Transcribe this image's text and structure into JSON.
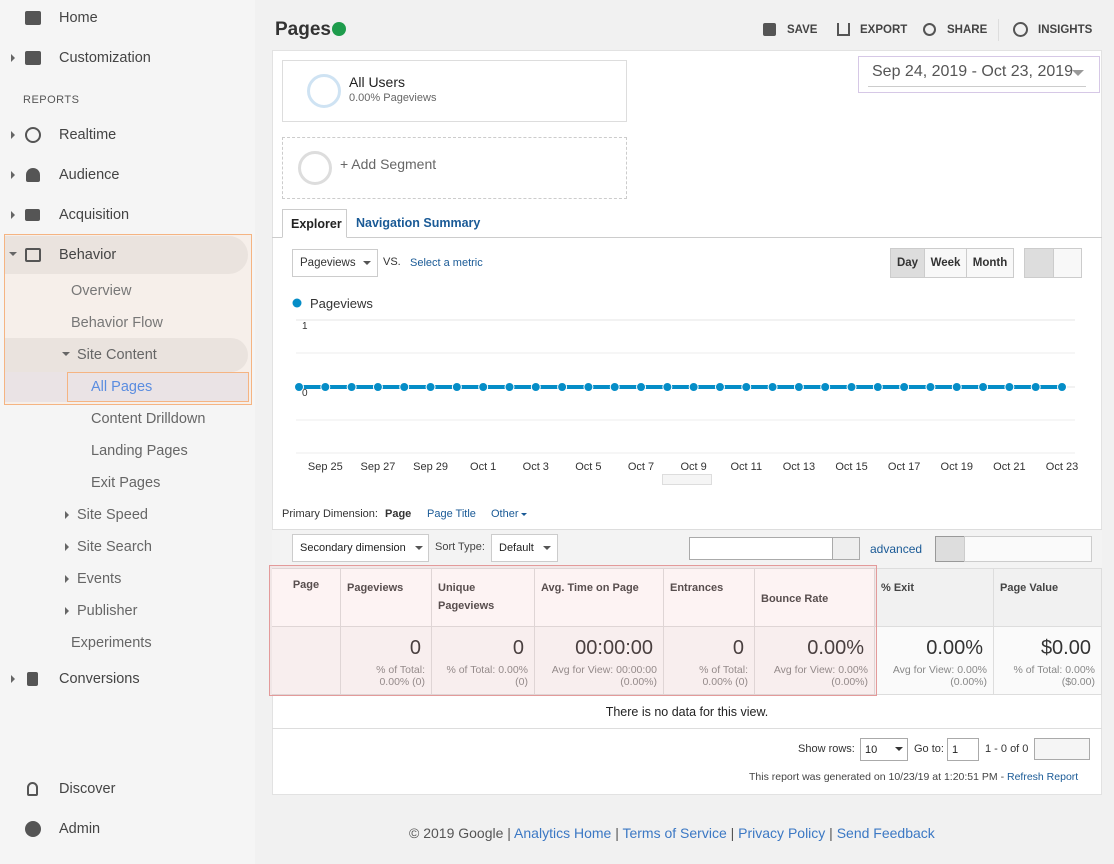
{
  "sidebar": {
    "top": [
      "Home",
      "Customization"
    ],
    "section": "REPORTS",
    "reports": [
      "Realtime",
      "Audience",
      "Acquisition",
      "Behavior",
      "Overview",
      "Behavior Flow",
      "Site Content",
      "All Pages",
      "Content Drilldown",
      "Landing Pages",
      "Exit Pages",
      "Site Speed",
      "Site Search",
      "Events",
      "Publisher",
      "Experiments",
      "Conversions"
    ],
    "bottom": [
      "Discover",
      "Admin"
    ]
  },
  "header": {
    "title": "Pages",
    "actions": [
      "SAVE",
      "EXPORT",
      "SHARE",
      "INSIGHTS"
    ],
    "date_range": "Sep 24, 2019 - Oct 23, 2019"
  },
  "segments": [
    {
      "name": "All Users",
      "detail": "0.00% Pageviews"
    },
    {
      "name": "+ Add Segment"
    }
  ],
  "tabs": [
    "Explorer",
    "Navigation Summary"
  ],
  "controls": {
    "metric": "Pageviews",
    "vs": "VS.",
    "select_metric": "Select a metric",
    "periods": [
      "Day",
      "Week",
      "Month"
    ]
  },
  "chart_data": {
    "type": "line",
    "categories": [
      null,
      "Sep 25",
      null,
      "Sep 27",
      null,
      "Sep 29",
      null,
      "Oct 1",
      null,
      "Oct 3",
      null,
      "Oct 5",
      null,
      "Oct 7",
      null,
      "Oct 9",
      null,
      "Oct 11",
      null,
      "Oct 13",
      null,
      "Oct 15",
      null,
      "Oct 17",
      null,
      "Oct 19",
      null,
      "Oct 21",
      null,
      "Oct 23"
    ],
    "series": [
      {
        "name": "Pageviews",
        "color": "#058dc7",
        "values": [
          0,
          0,
          0,
          0,
          0,
          0,
          0,
          0,
          0,
          0,
          0,
          0,
          0,
          0,
          0,
          0,
          0,
          0,
          0,
          0,
          0,
          0,
          0,
          0,
          0,
          0,
          0,
          0,
          0,
          0
        ]
      }
    ],
    "ylim": [
      0,
      1
    ],
    "yticks": [
      0,
      1
    ],
    "grid": true
  },
  "dimension": {
    "label": "Primary Dimension:",
    "options": [
      "Page",
      "Page Title",
      "Other"
    ],
    "secondary": "Secondary dimension",
    "sort_label": "Sort Type:",
    "sort": "Default",
    "advanced": "advanced"
  },
  "table": {
    "columns": [
      "Page",
      "Pageviews",
      "Unique Pageviews",
      "Avg. Time on Page",
      "Entrances",
      "Bounce Rate",
      "% Exit",
      "Page Value"
    ],
    "totals": [
      {
        "value": "0",
        "sub": [
          "% of Total:",
          "0.00% (0)"
        ]
      },
      {
        "value": "0",
        "sub": [
          "% of Total: 0.00%",
          "(0)"
        ]
      },
      {
        "value": "00:00:00",
        "sub": [
          "Avg for View: 00:00:00",
          "(0.00%)"
        ]
      },
      {
        "value": "0",
        "sub": [
          "% of Total:",
          "0.00% (0)"
        ]
      },
      {
        "value": "0.00%",
        "sub": [
          "Avg for View: 0.00%",
          "(0.00%)"
        ]
      },
      {
        "value": "0.00%",
        "sub": [
          "Avg for View: 0.00%",
          "(0.00%)"
        ]
      },
      {
        "value": "$0.00",
        "sub": [
          "% of Total: 0.00%",
          "($0.00)"
        ]
      }
    ],
    "empty": "There is no data for this view."
  },
  "pagination": {
    "show_rows": "Show rows:",
    "rows": "10",
    "goto": "Go to:",
    "page": "1",
    "range": "1 - 0 of 0"
  },
  "report_note": {
    "text": "This report was generated on 10/23/19 at 1:20:51 PM - ",
    "link": "Refresh Report"
  },
  "footer": {
    "copyright": "© 2019 Google",
    "links": [
      "Analytics Home",
      "Terms of Service",
      "Privacy Policy",
      "Send Feedback"
    ]
  }
}
